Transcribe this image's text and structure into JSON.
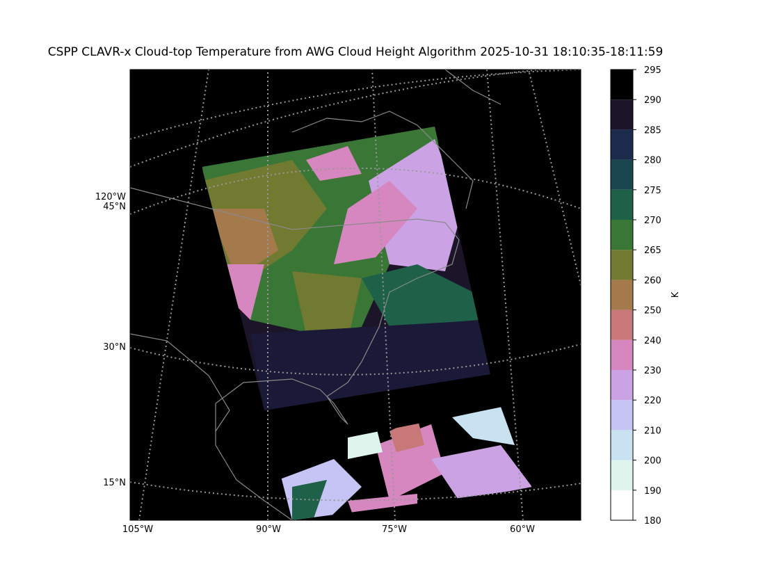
{
  "title": "CSPP CLAVR-x Cloud-top Temperature from AWG Cloud Height Algorithm 2025-10-31 18:10:35-18:11:59",
  "map": {
    "left_labels": [
      "120°W",
      "45°N",
      "30°N",
      "15°N"
    ],
    "bottom_labels": [
      "105°W",
      "90°W",
      "75°W",
      "60°W"
    ]
  },
  "colorbar": {
    "label": "K",
    "ticks": [
      180,
      190,
      200,
      210,
      220,
      230,
      240,
      250,
      260,
      265,
      270,
      275,
      280,
      285,
      290,
      295
    ],
    "colors": [
      "#ffffff",
      "#def4ec",
      "#c8e2f2",
      "#c6c4f4",
      "#cba2e4",
      "#d687bf",
      "#c87878",
      "#a47a4c",
      "#707a30",
      "#3a7636",
      "#1e6048",
      "#1a4650",
      "#1c2a4c",
      "#1c1428",
      "#000000"
    ]
  }
}
